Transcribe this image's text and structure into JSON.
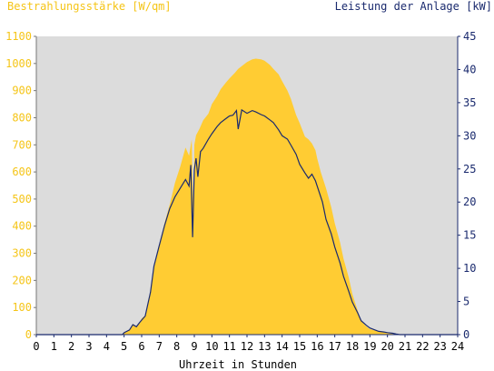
{
  "chart_data": {
    "type": "area",
    "title_left": "Bestrahlungsstärke [W/qm]",
    "title_right": "Leistung der Anlage [kW]",
    "xlabel": "Uhrzeit in Stunden",
    "xlim": [
      0,
      24
    ],
    "ylim_left": [
      0,
      1100
    ],
    "ylim_right": [
      0,
      45
    ],
    "x_ticks": [
      0,
      1,
      2,
      3,
      4,
      5,
      6,
      7,
      8,
      9,
      10,
      11,
      12,
      13,
      14,
      15,
      16,
      17,
      18,
      19,
      20,
      21,
      22,
      23,
      24
    ],
    "y_left_ticks": [
      0,
      100,
      200,
      300,
      400,
      500,
      600,
      700,
      800,
      900,
      1000,
      1100
    ],
    "y_right_ticks": [
      0,
      5,
      10,
      15,
      20,
      25,
      30,
      35,
      40,
      45
    ],
    "colors": {
      "irradiance_fill": "#ffcc33",
      "power_line": "#1a2a6e",
      "plot_background": "#dcdcdc",
      "left_axis_text": "#f5c518",
      "right_axis_text": "#1a2a6e"
    },
    "series": [
      {
        "name": "Bestrahlungsstärke [W/qm]",
        "axis": "left",
        "kind": "area",
        "x": [
          0,
          4.9,
          5.0,
          5.3,
          5.5,
          5.7,
          5.9,
          6.0,
          6.2,
          6.5,
          6.7,
          7.0,
          7.3,
          7.6,
          7.9,
          8.2,
          8.5,
          8.7,
          8.85,
          8.95,
          9.0,
          9.1,
          9.3,
          9.5,
          9.8,
          10.0,
          10.3,
          10.5,
          10.8,
          11.0,
          11.3,
          11.5,
          11.8,
          12.0,
          12.3,
          12.5,
          12.8,
          13.0,
          13.3,
          13.5,
          13.8,
          14.0,
          14.3,
          14.5,
          14.8,
          15.0,
          15.3,
          15.5,
          15.7,
          15.9,
          16.0,
          16.2,
          16.5,
          16.8,
          17.0,
          17.3,
          17.5,
          17.8,
          18.0,
          18.3,
          18.5,
          18.8,
          19.0,
          19.3,
          19.5,
          19.8,
          20.0,
          20.3,
          20.5,
          20.7,
          24
        ],
        "values": [
          0,
          0,
          8,
          18,
          40,
          30,
          45,
          60,
          70,
          150,
          250,
          330,
          410,
          480,
          560,
          620,
          690,
          660,
          720,
          420,
          700,
          735,
          760,
          790,
          815,
          850,
          880,
          905,
          930,
          945,
          965,
          980,
          995,
          1005,
          1015,
          1018,
          1015,
          1010,
          995,
          980,
          960,
          935,
          900,
          870,
          810,
          780,
          730,
          720,
          705,
          680,
          650,
          600,
          540,
          470,
          410,
          340,
          280,
          210,
          150,
          90,
          50,
          30,
          20,
          15,
          12,
          8,
          5,
          3,
          2,
          0,
          0
        ]
      },
      {
        "name": "Leistung der Anlage [kW]",
        "axis": "right",
        "kind": "line",
        "x": [
          0,
          4.9,
          5.0,
          5.3,
          5.5,
          5.7,
          5.9,
          6.0,
          6.2,
          6.5,
          6.7,
          7.0,
          7.3,
          7.6,
          7.9,
          8.2,
          8.5,
          8.7,
          8.8,
          8.9,
          9.0,
          9.1,
          9.2,
          9.35,
          9.5,
          9.8,
          10.0,
          10.3,
          10.5,
          10.8,
          11.0,
          11.2,
          11.4,
          11.5,
          11.7,
          12.0,
          12.3,
          12.5,
          12.8,
          13.0,
          13.3,
          13.5,
          13.8,
          14.0,
          14.3,
          14.5,
          14.8,
          15.0,
          15.3,
          15.5,
          15.7,
          15.9,
          16.0,
          16.3,
          16.5,
          16.8,
          17.0,
          17.3,
          17.5,
          17.8,
          18.0,
          18.3,
          18.5,
          18.8,
          19.0,
          19.3,
          19.5,
          19.8,
          20.0,
          20.3,
          20.5,
          20.7,
          24
        ],
        "values": [
          0,
          0,
          0.3,
          0.7,
          1.5,
          1.2,
          1.9,
          2.2,
          2.8,
          6.4,
          10.3,
          13.4,
          16.4,
          19.0,
          20.8,
          22.1,
          23.4,
          22.4,
          25.6,
          14.7,
          24.9,
          26.6,
          23.8,
          27.6,
          28.1,
          29.5,
          30.3,
          31.4,
          32.0,
          32.6,
          33.0,
          33.1,
          33.8,
          31.0,
          33.9,
          33.4,
          33.8,
          33.6,
          33.2,
          33.0,
          32.4,
          32.0,
          30.9,
          30.0,
          29.5,
          28.6,
          27.2,
          25.7,
          24.4,
          23.6,
          24.2,
          23.2,
          22.4,
          20.0,
          17.4,
          15.2,
          13.2,
          10.8,
          8.8,
          6.5,
          4.9,
          3.3,
          2.1,
          1.4,
          1.0,
          0.7,
          0.5,
          0.4,
          0.3,
          0.2,
          0.1,
          0,
          0
        ]
      }
    ]
  }
}
